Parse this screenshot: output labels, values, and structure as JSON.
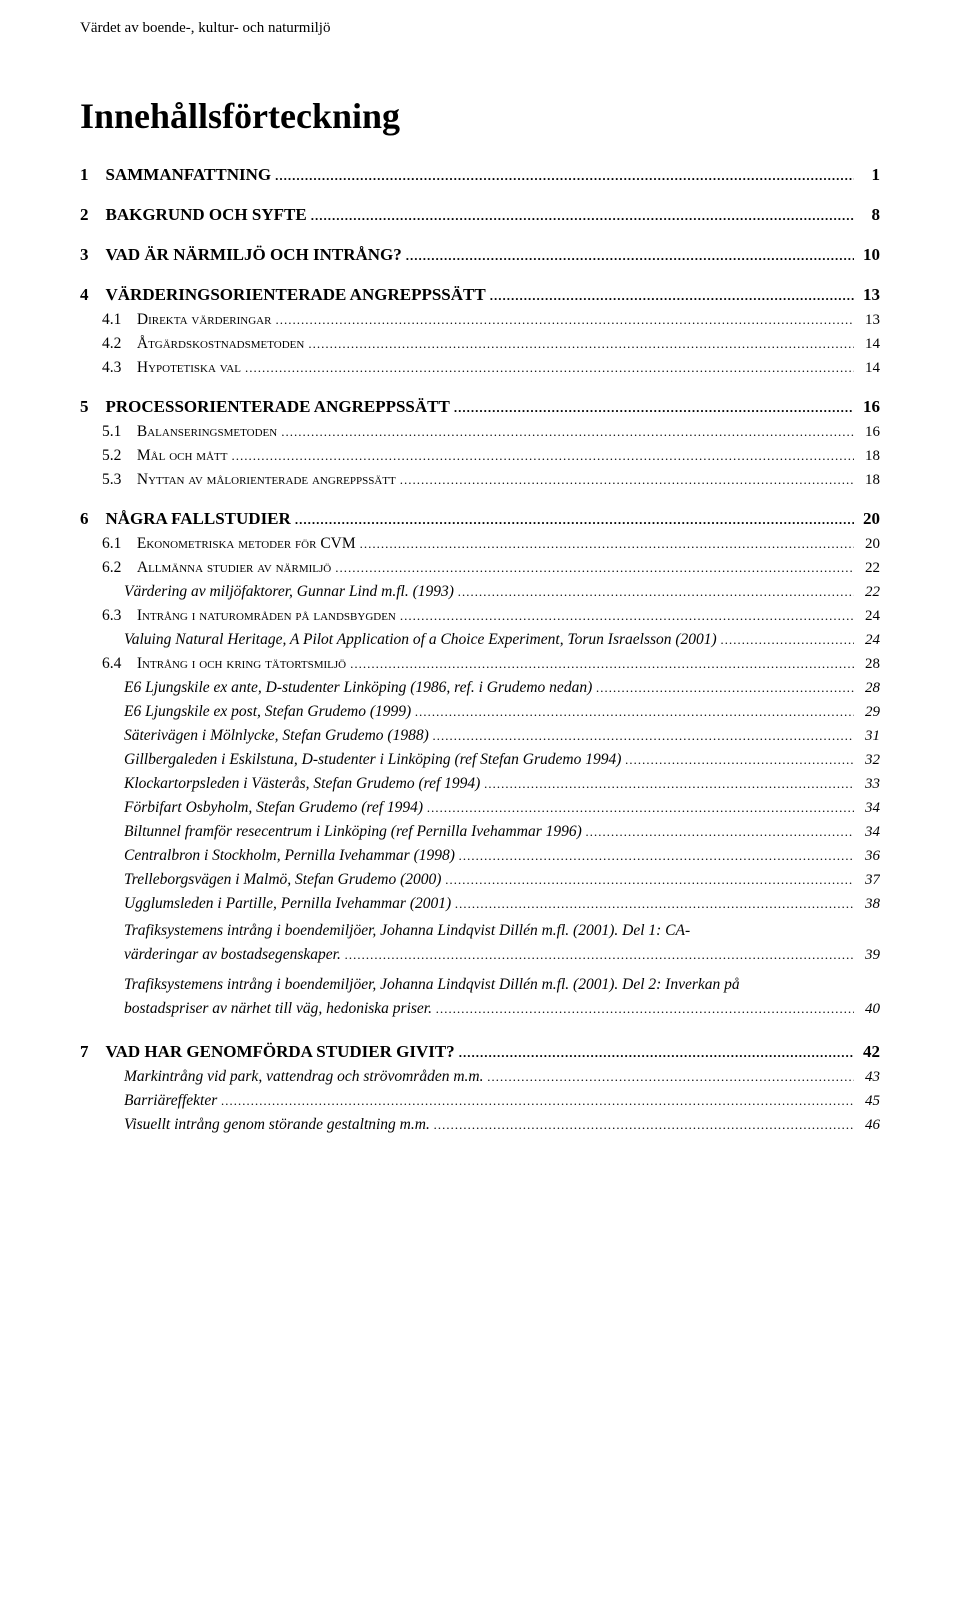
{
  "running_head": "Värdet av boende-, kultur- och naturmiljö",
  "doc_title": "Innehållsförteckning",
  "toc": [
    {
      "level": 1,
      "label": "1 SAMMANFATTNING",
      "page": "1"
    },
    {
      "level": 1,
      "label": "2 BAKGRUND OCH SYFTE",
      "page": "8"
    },
    {
      "level": 1,
      "label": "3 VAD ÄR NÄRMILJÖ OCH INTRÅNG?",
      "page": "10"
    },
    {
      "level": 1,
      "label": "4 VÄRDERINGSORIENTERADE ANGREPPSSÄTT",
      "page": "13"
    },
    {
      "level": 2,
      "label": "4.1 Direkta värderingar",
      "page": "13"
    },
    {
      "level": 2,
      "label": "4.2 Åtgärdskostnadsmetoden",
      "page": "14"
    },
    {
      "level": 2,
      "label": "4.3 Hypotetiska val",
      "page": "14"
    },
    {
      "level": 1,
      "label": "5 PROCESSORIENTERADE ANGREPPSSÄTT",
      "page": "16"
    },
    {
      "level": 2,
      "label": "5.1 Balanseringsmetoden",
      "page": "16"
    },
    {
      "level": 2,
      "label": "5.2 Mål och mått",
      "page": "18"
    },
    {
      "level": 2,
      "label": "5.3 Nyttan av målorienterade angreppssätt",
      "page": "18"
    },
    {
      "level": 1,
      "label": "6 NÅGRA FALLSTUDIER",
      "page": "20"
    },
    {
      "level": 2,
      "label": "6.1 Ekonometriska metoder för CVM",
      "page": "20"
    },
    {
      "level": 2,
      "label": "6.2 Allmänna studier av närmiljö",
      "page": "22"
    },
    {
      "level": 3,
      "label": "Värdering av miljöfaktorer, Gunnar Lind m.fl. (1993)",
      "page": "22"
    },
    {
      "level": 2,
      "label": "6.3 Intrång i naturområden på landsbygden",
      "page": "24"
    },
    {
      "level": 3,
      "label": "Valuing Natural Heritage, A Pilot Application of a Choice Experiment, Torun Israelsson (2001)",
      "page": "24"
    },
    {
      "level": 2,
      "label": "6.4 Intrång i och kring tätortsmiljö",
      "page": "28"
    },
    {
      "level": 3,
      "label": "E6 Ljungskile ex ante, D-studenter Linköping (1986, ref. i Grudemo nedan)",
      "page": "28"
    },
    {
      "level": 3,
      "label": "E6 Ljungskile ex post, Stefan Grudemo (1999)",
      "page": "29"
    },
    {
      "level": 3,
      "label": "Säterivägen i Mölnlycke, Stefan Grudemo (1988)",
      "page": "31"
    },
    {
      "level": 3,
      "label": "Gillbergaleden i Eskilstuna, D-studenter i Linköping (ref Stefan Grudemo 1994)",
      "page": "32"
    },
    {
      "level": 3,
      "label": "Klockartorpsleden i Västerås, Stefan Grudemo (ref 1994)",
      "page": "33"
    },
    {
      "level": 3,
      "label": "Förbifart Osbyholm, Stefan Grudemo (ref 1994)",
      "page": "34"
    },
    {
      "level": 3,
      "label": "Biltunnel framför resecentrum i Linköping (ref Pernilla Ivehammar 1996)",
      "page": "34"
    },
    {
      "level": 3,
      "label": "Centralbron i Stockholm, Pernilla Ivehammar (1998)",
      "page": "36"
    },
    {
      "level": 3,
      "label": "Trelleborgsvägen i Malmö, Stefan Grudemo (2000)",
      "page": "37"
    },
    {
      "level": 3,
      "label": "Ugglumsleden i Partille, Pernilla Ivehammar (2001)",
      "page": "38"
    },
    {
      "level": "3wrap",
      "line1": "Trafiksystemens intrång i boendemiljöer, Johanna Lindqvist Dillén m.fl. (2001). Del 1: CA-",
      "line2": "värderingar av bostadsegenskaper.",
      "page": "39"
    },
    {
      "level": "3wrap",
      "line1": "Trafiksystemens intrång i boendemiljöer, Johanna Lindqvist Dillén m.fl. (2001). Del 2: Inverkan på",
      "line2": "bostadspriser av närhet till väg, hedoniska priser.",
      "page": "40"
    },
    {
      "level": 1,
      "label": "7 VAD HAR GENOMFÖRDA STUDIER GIVIT?",
      "page": "42"
    },
    {
      "level": 3,
      "label": "Markintrång vid park, vattendrag och strövområden m.m.",
      "page": "43"
    },
    {
      "level": 3,
      "label": "Barriäreffekter",
      "page": "45"
    },
    {
      "level": 3,
      "label": "Visuellt intrång genom störande gestaltning m.m.",
      "page": "46"
    }
  ]
}
